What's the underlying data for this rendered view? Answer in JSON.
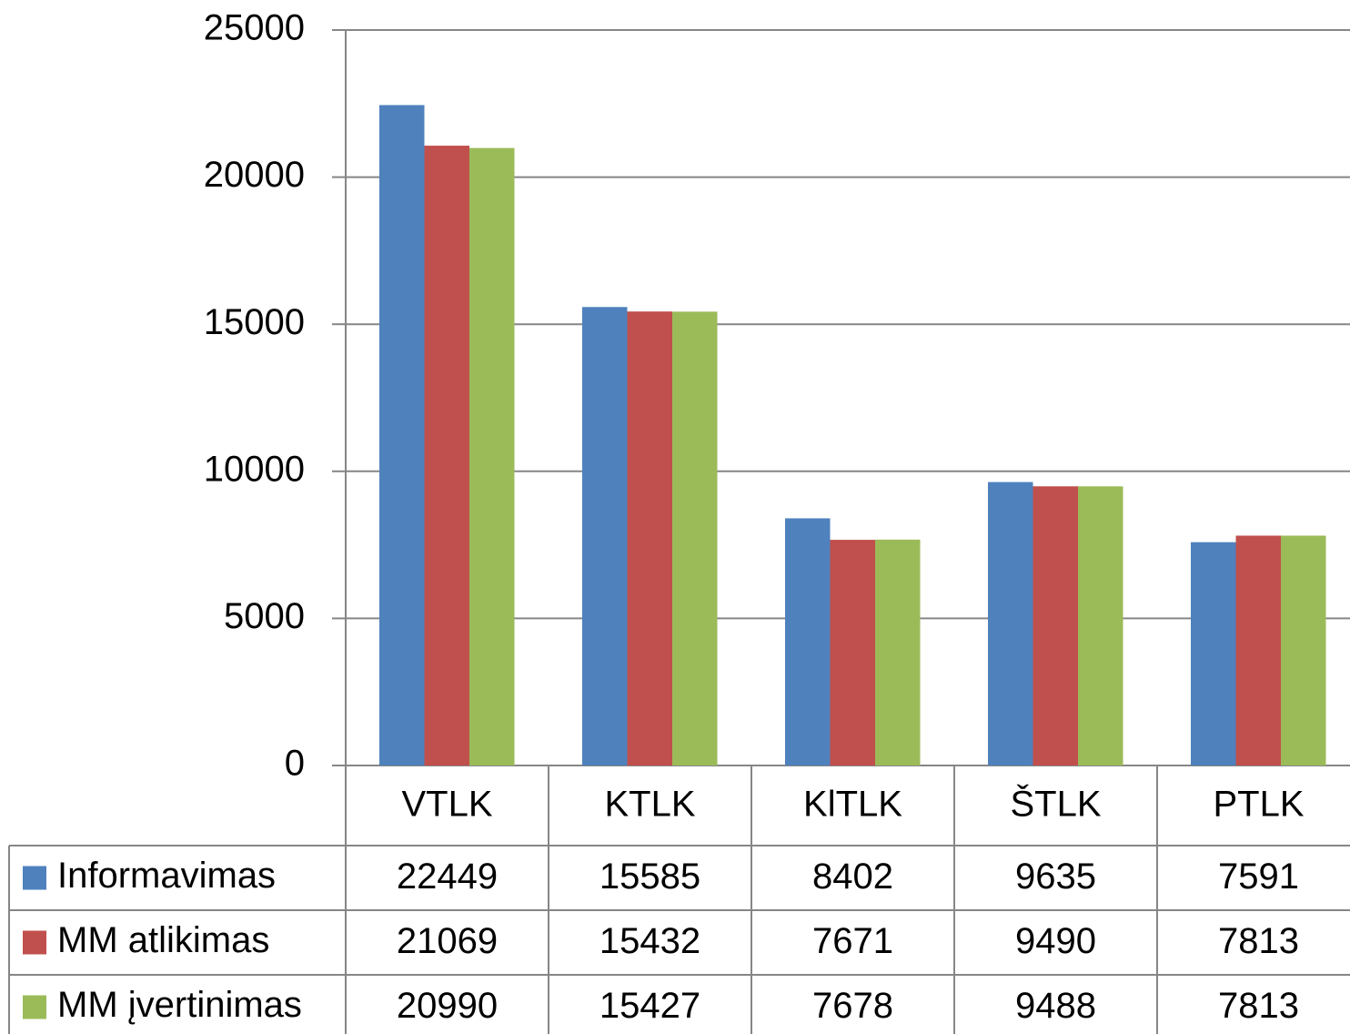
{
  "chart_data": {
    "type": "bar",
    "categories": [
      "VTLK",
      "KTLK",
      "KlTLK",
      "ŠTLK",
      "PTLK"
    ],
    "series": [
      {
        "name": "Informavimas",
        "color": "#4f81bd",
        "values": [
          22449,
          15585,
          8402,
          9635,
          7591
        ]
      },
      {
        "name": "MM atlikimas",
        "color": "#c0504d",
        "values": [
          21069,
          15432,
          7671,
          9490,
          7813
        ]
      },
      {
        "name": "MM įvertinimas",
        "color": "#9bbb59",
        "values": [
          20990,
          15427,
          7678,
          9488,
          7813
        ]
      }
    ],
    "ylim": [
      0,
      25000
    ],
    "yticks": [
      0,
      5000,
      10000,
      15000,
      20000,
      25000
    ],
    "grid": true
  }
}
